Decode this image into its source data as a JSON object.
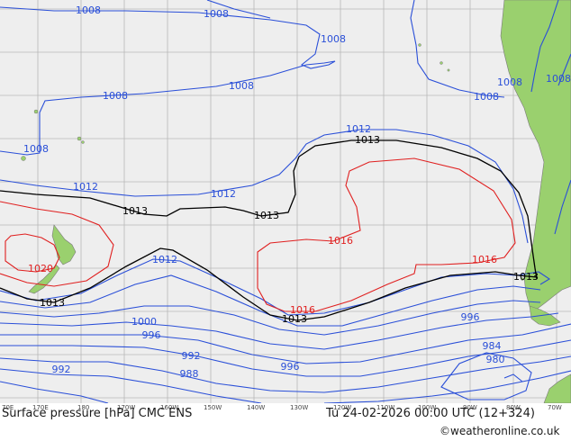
{
  "map": {
    "colors": {
      "ocean": "#eeeeee",
      "land": "#9ad06e",
      "isobar_low": "#2a4fd8",
      "isobar_mid": "#000000",
      "isobar_high": "#e02020",
      "grid": "#b0b0b0"
    },
    "isobar_labels": {
      "l1008_a": "1008",
      "l1008_b": "1008",
      "l1008_c": "1008",
      "l1008_d": "1008",
      "l1008_e": "1008",
      "l1008_f": "1008",
      "l1008_g": "1008",
      "l1008_h": "1008",
      "l1008_i": "1008",
      "l1012_a": "1012",
      "l1012_b": "1012",
      "l1012_c": "1012",
      "l1012_d": "1012",
      "l1013_a": "1013",
      "l1013_b": "1013",
      "l1013_c": "1013",
      "l1013_d": "1013",
      "l1013_e": "1013",
      "l1016_a": "1016",
      "l1016_b": "1016",
      "l1016_c": "1016",
      "l1020": "1020",
      "l1000": "1000",
      "l996_a": "996",
      "l996_b": "996",
      "l996_c": "996",
      "l992_a": "992",
      "l992_b": "992",
      "l988": "988",
      "l984": "984",
      "l980": "980"
    }
  },
  "footer": {
    "title": "Surface pressure [hPa] CMC ENS",
    "datetime": "Tu 24-02-2026 00:00 UTC (12+324)",
    "copyright": "©weatheronline.co.uk",
    "lon_labels": [
      "70E",
      "170E",
      "180",
      "170W",
      "160W",
      "150W",
      "140W",
      "130W",
      "120W",
      "110W",
      "100W",
      "90W",
      "80W",
      "70W"
    ]
  }
}
